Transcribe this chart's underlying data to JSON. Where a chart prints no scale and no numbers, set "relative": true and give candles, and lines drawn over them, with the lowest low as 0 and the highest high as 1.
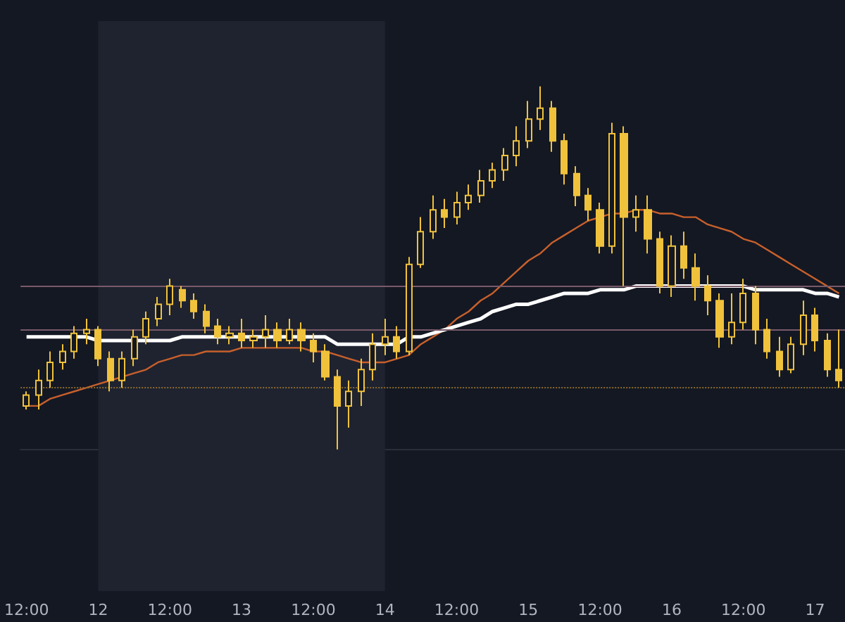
{
  "chart_data": {
    "type": "candlestick",
    "relative": true,
    "color": "#f0c23c",
    "grid": false,
    "tick_labels": "x",
    "marker": "none",
    "categories": [
      "12:00",
      null,
      null,
      null,
      null,
      null,
      "12",
      null,
      null,
      null,
      null,
      null,
      "12:00",
      null,
      null,
      null,
      null,
      null,
      "13",
      null,
      null,
      null,
      null,
      null,
      "12:00",
      null,
      null,
      null,
      null,
      null,
      "14",
      null,
      null,
      null,
      null,
      null,
      "12:00",
      null,
      null,
      null,
      null,
      null,
      "15",
      null,
      null,
      null,
      null,
      null,
      "12:00",
      null,
      null,
      null,
      null,
      null,
      "16",
      null,
      null,
      null,
      null,
      null,
      "12:00",
      null,
      null,
      null,
      null,
      null,
      "17",
      null,
      null
    ],
    "ohlc": [
      [
        0.12,
        0.16,
        0.11,
        0.15
      ],
      [
        0.15,
        0.22,
        0.11,
        0.19
      ],
      [
        0.19,
        0.27,
        0.17,
        0.24
      ],
      [
        0.24,
        0.29,
        0.22,
        0.27
      ],
      [
        0.27,
        0.34,
        0.25,
        0.32
      ],
      [
        0.32,
        0.36,
        0.29,
        0.33
      ],
      [
        0.33,
        0.34,
        0.23,
        0.25
      ],
      [
        0.25,
        0.27,
        0.16,
        0.19
      ],
      [
        0.19,
        0.27,
        0.17,
        0.25
      ],
      [
        0.25,
        0.33,
        0.23,
        0.31
      ],
      [
        0.31,
        0.38,
        0.29,
        0.36
      ],
      [
        0.36,
        0.42,
        0.34,
        0.4
      ],
      [
        0.4,
        0.47,
        0.37,
        0.45
      ],
      [
        0.44,
        0.45,
        0.39,
        0.41
      ],
      [
        0.41,
        0.43,
        0.36,
        0.38
      ],
      [
        0.38,
        0.4,
        0.32,
        0.34
      ],
      [
        0.34,
        0.36,
        0.29,
        0.31
      ],
      [
        0.31,
        0.34,
        0.29,
        0.32
      ],
      [
        0.32,
        0.36,
        0.28,
        0.3
      ],
      [
        0.3,
        0.33,
        0.28,
        0.31
      ],
      [
        0.31,
        0.37,
        0.28,
        0.33
      ],
      [
        0.33,
        0.35,
        0.28,
        0.3
      ],
      [
        0.3,
        0.36,
        0.29,
        0.33
      ],
      [
        0.33,
        0.35,
        0.27,
        0.3
      ],
      [
        0.3,
        0.32,
        0.24,
        0.27
      ],
      [
        0.27,
        0.29,
        0.19,
        0.2
      ],
      [
        0.2,
        0.22,
        0,
        0.12
      ],
      [
        0.12,
        0.19,
        0.06,
        0.16
      ],
      [
        0.16,
        0.25,
        0.12,
        0.22
      ],
      [
        0.22,
        0.32,
        0.19,
        0.29
      ],
      [
        0.29,
        0.36,
        0.26,
        0.31
      ],
      [
        0.31,
        0.34,
        0.25,
        0.27
      ],
      [
        0.27,
        0.53,
        0.26,
        0.51
      ],
      [
        0.51,
        0.64,
        0.5,
        0.6
      ],
      [
        0.6,
        0.7,
        0.58,
        0.66
      ],
      [
        0.66,
        0.69,
        0.61,
        0.64
      ],
      [
        0.64,
        0.71,
        0.62,
        0.68
      ],
      [
        0.68,
        0.73,
        0.66,
        0.7
      ],
      [
        0.7,
        0.77,
        0.68,
        0.74
      ],
      [
        0.74,
        0.79,
        0.72,
        0.77
      ],
      [
        0.77,
        0.83,
        0.74,
        0.81
      ],
      [
        0.81,
        0.89,
        0.78,
        0.85
      ],
      [
        0.85,
        0.96,
        0.83,
        0.91
      ],
      [
        0.91,
        1,
        0.88,
        0.94
      ],
      [
        0.94,
        0.96,
        0.82,
        0.85
      ],
      [
        0.85,
        0.87,
        0.73,
        0.76
      ],
      [
        0.76,
        0.78,
        0.67,
        0.7
      ],
      [
        0.7,
        0.72,
        0.63,
        0.66
      ],
      [
        0.66,
        0.68,
        0.54,
        0.56
      ],
      [
        0.56,
        0.9,
        0.54,
        0.87
      ],
      [
        0.87,
        0.89,
        0.45,
        0.64
      ],
      [
        0.64,
        0.7,
        0.6,
        0.66
      ],
      [
        0.66,
        0.7,
        0.54,
        0.58
      ],
      [
        0.58,
        0.6,
        0.43,
        0.45
      ],
      [
        0.45,
        0.59,
        0.42,
        0.56
      ],
      [
        0.56,
        0.6,
        0.47,
        0.5
      ],
      [
        0.5,
        0.54,
        0.41,
        0.45
      ],
      [
        0.45,
        0.48,
        0.37,
        0.41
      ],
      [
        0.41,
        0.43,
        0.28,
        0.31
      ],
      [
        0.31,
        0.43,
        0.29,
        0.35
      ],
      [
        0.35,
        0.47,
        0.33,
        0.43
      ],
      [
        0.43,
        0.45,
        0.29,
        0.33
      ],
      [
        0.33,
        0.36,
        0.25,
        0.27
      ],
      [
        0.27,
        0.31,
        0.2,
        0.22
      ],
      [
        0.22,
        0.31,
        0.21,
        0.29
      ],
      [
        0.29,
        0.41,
        0.26,
        0.37
      ],
      [
        0.37,
        0.39,
        0.27,
        0.3
      ],
      [
        0.3,
        0.32,
        0.2,
        0.22
      ],
      [
        0.22,
        0.33,
        0.17,
        0.19
      ]
    ],
    "series": [
      {
        "type": "line",
        "color": "#c8602c",
        "values": [
          0.12,
          0.12,
          0.14,
          0.15,
          0.16,
          0.17,
          0.18,
          0.19,
          0.2,
          0.21,
          0.22,
          0.24,
          0.25,
          0.26,
          0.26,
          0.27,
          0.27,
          0.27,
          0.28,
          0.28,
          0.28,
          0.28,
          0.28,
          0.28,
          0.27,
          0.27,
          0.26,
          0.25,
          0.24,
          0.24,
          0.24,
          0.25,
          0.26,
          0.29,
          0.31,
          0.33,
          0.36,
          0.38,
          0.41,
          0.43,
          0.46,
          0.49,
          0.52,
          0.54,
          0.57,
          0.59,
          0.61,
          0.63,
          0.64,
          0.65,
          0.65,
          0.66,
          0.66,
          0.65,
          0.65,
          0.64,
          0.64,
          0.62,
          0.61,
          0.6,
          0.58,
          0.57,
          0.55,
          0.53,
          0.51,
          0.49,
          0.47,
          0.45,
          0.43
        ]
      },
      {
        "type": "line",
        "color": "#ffffff",
        "values": [
          0.31,
          0.31,
          0.31,
          0.31,
          0.31,
          0.31,
          0.3,
          0.3,
          0.3,
          0.3,
          0.3,
          0.3,
          0.3,
          0.31,
          0.31,
          0.31,
          0.31,
          0.31,
          0.31,
          0.31,
          0.31,
          0.31,
          0.31,
          0.31,
          0.31,
          0.31,
          0.29,
          0.29,
          0.29,
          0.29,
          0.29,
          0.29,
          0.31,
          0.31,
          0.32,
          0.33,
          0.34,
          0.35,
          0.36,
          0.38,
          0.39,
          0.4,
          0.4,
          0.41,
          0.42,
          0.43,
          0.43,
          0.43,
          0.44,
          0.44,
          0.44,
          0.45,
          0.45,
          0.45,
          0.45,
          0.45,
          0.45,
          0.45,
          0.45,
          0.45,
          0.45,
          0.44,
          0.44,
          0.44,
          0.44,
          0.44,
          0.43,
          0.43,
          0.42
        ]
      }
    ],
    "ref_lines": [
      {
        "axis": "y",
        "value": 0.45,
        "color": "#7a5a68",
        "line_style": "solid"
      },
      {
        "axis": "y",
        "value": 0.33,
        "color": "#7a5a68",
        "line_style": "solid"
      },
      {
        "axis": "y",
        "value": 0.17,
        "color": "#8a6a2a",
        "line_style": "dotted"
      }
    ],
    "bands": [
      {
        "axis": "x",
        "from": "12",
        "to": "14",
        "color": "#1f2330"
      }
    ]
  }
}
